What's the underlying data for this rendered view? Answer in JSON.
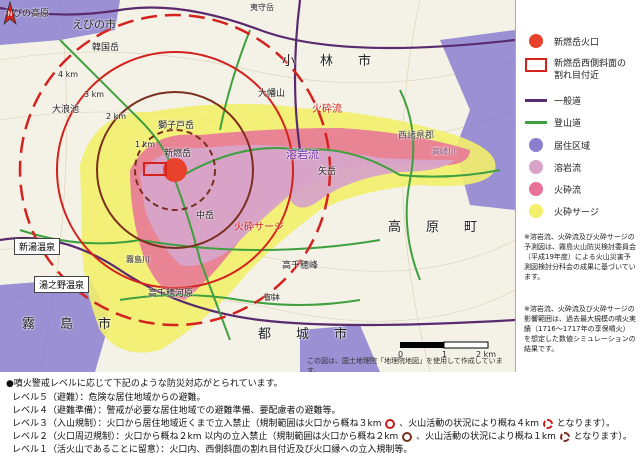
{
  "map": {
    "place_labels": {
      "ebino_plateau": "えびの高原",
      "ebino_city": "えびの市",
      "kobayashi_city": "小　林　市",
      "takaharu_town": "高　原　町",
      "kirishima_city": "霧　島　市",
      "miyakonojo_city": "都　城　市",
      "nishi_morokata": "西諸県郡",
      "karakunidake": "韓国岳",
      "onamiike": "大浪池",
      "ohatayama": "大幡山",
      "shishiko": "獅子戸岳",
      "shinmoedake": "新燃岳",
      "nakadake": "中岳",
      "yatake": "矢岳",
      "takachiho_kawara": "高千穂河原",
      "takachihonomine": "高千穂峰",
      "mimata": "御鉢",
      "yuza": "夷守岳",
      "manohoka": "霧島川",
      "takahara_river": "高崎川"
    },
    "distance_labels": {
      "r1": "1 km",
      "r2": "2 km",
      "r3": "3 km",
      "r4": "4 km"
    },
    "flow_labels": {
      "pyroclastic_flow": "火砕流",
      "lava_flow": "溶岩流",
      "pyroclastic_surge": "火砕サージ"
    },
    "boxes": {
      "shinyu_onsen": "新湯温泉",
      "yunono_onsen": "湯之野温泉"
    },
    "scale": {
      "zero": "0",
      "one": "1",
      "two": "2 km"
    },
    "attribution": "この図は、国土地理院「地理院地図」を使用して作成しています。",
    "north": "N"
  },
  "legend": {
    "items": [
      {
        "label": "新燃岳火口",
        "color": "#e8412c"
      },
      {
        "label": "新燃岳西側斜面の割れ目付近",
        "color": "#d4221e"
      },
      {
        "label": "一般道",
        "color": "#5a2a6e"
      },
      {
        "label": "登山道",
        "color": "#3fa03f"
      },
      {
        "label": "居住区域",
        "color": "#8b7fd0"
      },
      {
        "label": "溶岩流",
        "color": "#d7a4c8"
      },
      {
        "label": "火砕流",
        "color": "#e8719a"
      },
      {
        "label": "火砕サージ",
        "color": "#f2ef6a"
      }
    ],
    "note1": "※溶岩流、火砕流及び火砕サージの予測図は、霧島火山防災検討委員会（平成19年度）による火山災害予測図検討分科会の成果に基づいています。",
    "note2": "※溶岩流、火砕流及び火砕サージの影響範囲は、過去最大規模の噴火実績（1716〜1717年の享保噴火）を想定した数値シミュレーションの結果です。"
  },
  "notes": {
    "header": "●噴火警戒レベルに応じて下記のような防災対応がとられています。",
    "lines": [
      "レベル５（避難）：危険な居住地域からの避難。",
      "レベル４（避難準備）：警戒が必要な居住地域での避難準備、要配慮者の避難等。",
      "レベル３（入山規制）：火口から居住地域近くまで立入禁止（規制範囲は火口から概ね３km",
      "レベル２（火口周辺規制）：火口から概ね２km 以内の立入禁止（規制範囲は火口から概ね２km",
      "レベル１（活火山であることに留意）：火口内、西側斜面の割れ目付近及び火口縁への立入規制等。"
    ],
    "line3_tail_a": "、火山活動の状況により概ね４km",
    "line3_tail_b": "となります）。",
    "line4_tail_a": "、火山活動の状況により概ね１km",
    "line4_tail_b": "となります）。"
  }
}
